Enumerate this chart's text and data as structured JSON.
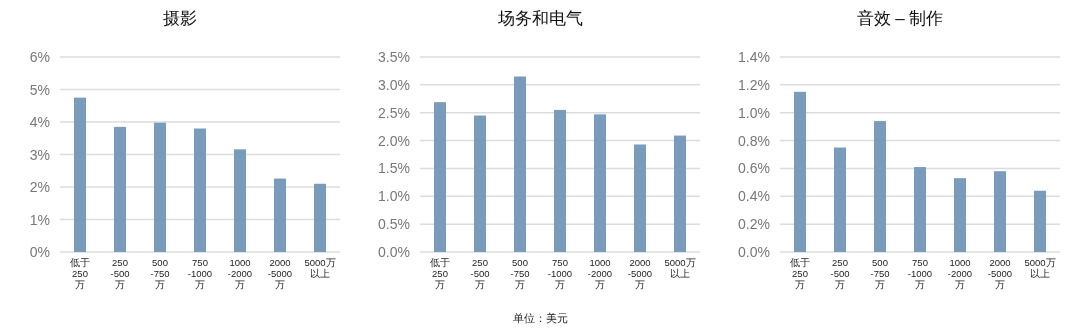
{
  "chart_data": [
    {
      "type": "bar",
      "title": "摄影",
      "categories": [
        "低于\n250\n万",
        "250\n-500\n万",
        "500\n-750\n万",
        "750\n-1000\n万",
        "1000\n-2000\n万",
        "2000\n-5000\n万",
        "5000万以上"
      ],
      "values": [
        4.75,
        3.85,
        3.98,
        3.8,
        3.16,
        2.26,
        2.1
      ],
      "color": "#7a9cbc",
      "ylim": [
        0,
        6
      ],
      "yticks": [
        {
          "value": 0,
          "label": "0%"
        },
        {
          "value": 1,
          "label": "1%"
        },
        {
          "value": 2,
          "label": "2%"
        },
        {
          "value": 3,
          "label": "3%"
        },
        {
          "value": 4,
          "label": "4%"
        },
        {
          "value": 5,
          "label": "5%"
        },
        {
          "value": 6,
          "label": "6%"
        }
      ],
      "grid": "y"
    },
    {
      "type": "bar",
      "title": "场务和电气",
      "categories": [
        "低于\n250\n万",
        "250\n-500\n万",
        "500\n-750\n万",
        "750\n-1000\n万",
        "1000\n-2000\n万",
        "2000\n-5000\n万",
        "5000万以上"
      ],
      "values": [
        2.69,
        2.45,
        3.15,
        2.55,
        2.47,
        1.93,
        2.09
      ],
      "color": "#7a9cbc",
      "ylim": [
        0,
        3.5
      ],
      "yticks": [
        {
          "value": 0,
          "label": "0.0%"
        },
        {
          "value": 0.5,
          "label": "0.5%"
        },
        {
          "value": 1,
          "label": "1.0%"
        },
        {
          "value": 1.5,
          "label": "1.5%"
        },
        {
          "value": 2,
          "label": "2.0%"
        },
        {
          "value": 2.5,
          "label": "2.5%"
        },
        {
          "value": 3,
          "label": "3.0%"
        },
        {
          "value": 3.5,
          "label": "3.5%"
        }
      ],
      "grid": "y",
      "annotations": [
        "单位：美元"
      ]
    },
    {
      "type": "bar",
      "title": "音效 – 制作",
      "categories": [
        "低于\n250\n万",
        "250\n-500\n万",
        "500\n-750\n万",
        "750\n-1000\n万",
        "1000\n-2000\n万",
        "2000\n-5000\n万",
        "5000万以上"
      ],
      "values": [
        1.15,
        0.75,
        0.94,
        0.61,
        0.53,
        0.58,
        0.44
      ],
      "color": "#7a9cbc",
      "ylim": [
        0,
        1.4
      ],
      "yticks": [
        {
          "value": 0,
          "label": "0.0%"
        },
        {
          "value": 0.2,
          "label": "0.2%"
        },
        {
          "value": 0.4,
          "label": "0.4%"
        },
        {
          "value": 0.6,
          "label": "0.6%"
        },
        {
          "value": 0.8,
          "label": "0.8%"
        },
        {
          "value": 1,
          "label": "1.0%"
        },
        {
          "value": 1.2,
          "label": "1.2%"
        },
        {
          "value": 1.4,
          "label": "1.4%"
        }
      ],
      "grid": "y"
    }
  ]
}
